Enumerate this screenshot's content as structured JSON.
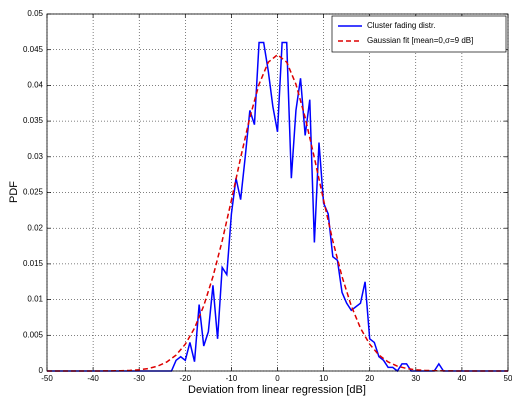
{
  "chart_data": {
    "type": "line",
    "xlabel": "Deviation from linear regression [dB]",
    "ylabel": "PDF",
    "xlim": [
      -50,
      50
    ],
    "xticks": [
      -50,
      -40,
      -30,
      -20,
      -10,
      0,
      10,
      20,
      30,
      40,
      50
    ],
    "ylim": [
      0,
      0.05
    ],
    "yticks": [
      0,
      0.005,
      0.01,
      0.015,
      0.02,
      0.025,
      0.03,
      0.035,
      0.04,
      0.045,
      0.05
    ],
    "grid": true,
    "legend": "upper right",
    "series": [
      {
        "name": "Cluster fading distr.",
        "color": "#0000ff",
        "line_style": "solid",
        "x": [
          -50,
          -23,
          -22,
          -21,
          -20,
          -19,
          -18,
          -17,
          -16,
          -15,
          -14,
          -13,
          -12,
          -11,
          -10,
          -9,
          -8,
          -7,
          -6,
          -5,
          -4,
          -3,
          -2,
          -1,
          0,
          1,
          2,
          3,
          4,
          5,
          6,
          7,
          8,
          9,
          10,
          11,
          12,
          13,
          14,
          15,
          16,
          17,
          18,
          19,
          20,
          21,
          22,
          23,
          24,
          25,
          26,
          27,
          28,
          29,
          30,
          31,
          32,
          33,
          34,
          35,
          36,
          50
        ],
        "values": [
          0,
          0,
          0.0015,
          0.002,
          0.0015,
          0.004,
          0.0013,
          0.0093,
          0.0035,
          0.0055,
          0.012,
          0.0045,
          0.0145,
          0.0135,
          0.022,
          0.027,
          0.024,
          0.03,
          0.0365,
          0.0345,
          0.046,
          0.046,
          0.042,
          0.037,
          0.0335,
          0.046,
          0.046,
          0.027,
          0.0365,
          0.041,
          0.033,
          0.038,
          0.018,
          0.032,
          0.0235,
          0.022,
          0.016,
          0.0155,
          0.011,
          0.0095,
          0.0085,
          0.009,
          0.0095,
          0.0125,
          0.0045,
          0.004,
          0.002,
          0.0015,
          0.0005,
          0.0005,
          0,
          0.001,
          0.001,
          0,
          0,
          0,
          0,
          0,
          0,
          0.001,
          0,
          0
        ]
      },
      {
        "name": "Gaussian fit [mean=0,σ=9 dB]",
        "color": "#dd0000",
        "line_style": "dashed",
        "x": [
          -50,
          -40,
          -36,
          -34,
          -32,
          -30,
          -28,
          -26,
          -24,
          -22,
          -20,
          -18,
          -16,
          -14,
          -12,
          -10,
          -8,
          -6,
          -4,
          -2,
          0,
          2,
          4,
          6,
          8,
          10,
          12,
          14,
          16,
          18,
          20,
          22,
          24,
          26,
          28,
          30,
          32,
          34,
          36,
          40,
          50
        ],
        "values": [
          0,
          0,
          2e-05,
          4e-05,
          8e-05,
          0.00017,
          0.00035,
          0.00068,
          0.00127,
          0.00223,
          0.00375,
          0.006,
          0.00913,
          0.01322,
          0.01822,
          0.02391,
          0.02986,
          0.0355,
          0.04016,
          0.04325,
          0.0443,
          0.04325,
          0.04016,
          0.0355,
          0.02986,
          0.02391,
          0.01822,
          0.01322,
          0.00913,
          0.006,
          0.00375,
          0.00223,
          0.00127,
          0.00068,
          0.00035,
          0.00017,
          8e-05,
          4e-05,
          2e-05,
          0,
          0
        ]
      }
    ]
  }
}
